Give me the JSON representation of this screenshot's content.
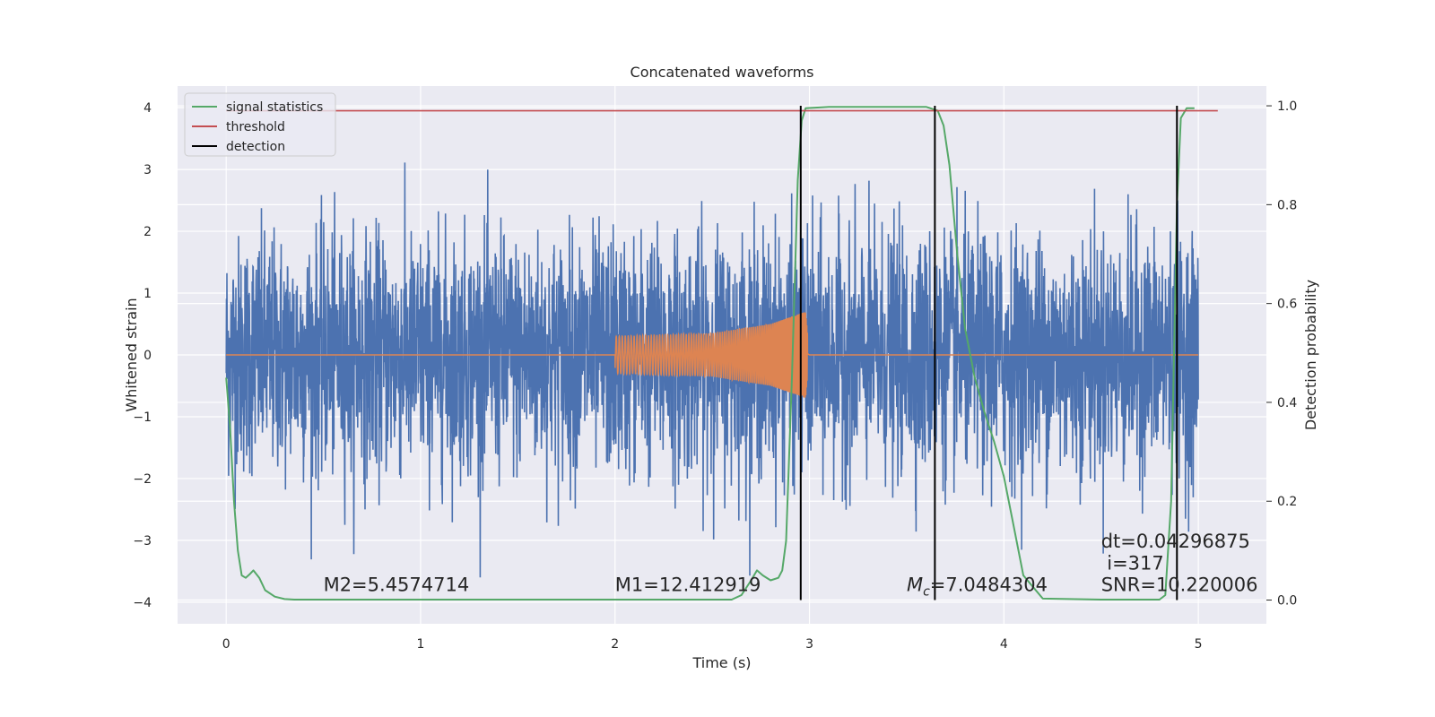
{
  "chart_data": {
    "type": "line",
    "title": "Concatenated waveforms",
    "xlabel": "Time (s)",
    "ylabel": "Whitened strain",
    "ylabel_right": "Detection probability",
    "xlim": [
      -0.25,
      5.35
    ],
    "ylim": [
      -4.35,
      4.35
    ],
    "ylim_right": [
      -0.048,
      1.04
    ],
    "x_ticks": [
      0,
      1,
      2,
      3,
      4,
      5
    ],
    "x_tick_labels": [
      "0",
      "1",
      "2",
      "3",
      "4",
      "5"
    ],
    "y_ticks": [
      -4,
      -3,
      -2,
      -1,
      0,
      1,
      2,
      3,
      4
    ],
    "y_tick_labels": [
      "−4",
      "−3",
      "−2",
      "−1",
      "0",
      "1",
      "2",
      "3",
      "4"
    ],
    "y_ticks_right": [
      0.0,
      0.2,
      0.4,
      0.6,
      0.8,
      1.0
    ],
    "y_tick_labels_right": [
      "0.0",
      "0.2",
      "0.4",
      "0.6",
      "0.8",
      "1.0"
    ],
    "grid": true,
    "legend_position": "top-left",
    "colors": {
      "strain": "#4c72b0",
      "template": "#dd8452",
      "signal_statistics": "#55a868",
      "threshold": "#c44e52",
      "detection": "#000000",
      "plot_bg": "#eaeaf2",
      "grid": "#ffffff"
    },
    "series": [
      {
        "name": "",
        "axis": "left",
        "x_range": [
          0,
          5
        ],
        "envelope_min": -3.6,
        "envelope_max": 3.5
      },
      {
        "name": "",
        "axis": "left",
        "x": [
          0,
          2.0,
          2.0,
          2.5,
          2.8,
          2.98,
          3.0,
          5.0
        ],
        "amplitude": [
          0,
          0,
          0.3,
          0.35,
          0.5,
          0.7,
          0,
          0
        ]
      },
      {
        "name": "signal statistics",
        "axis": "right",
        "x": [
          0.0,
          0.02,
          0.04,
          0.06,
          0.08,
          0.1,
          0.12,
          0.14,
          0.17,
          0.2,
          0.25,
          0.3,
          0.35,
          0.5,
          1.0,
          1.5,
          2.0,
          2.5,
          2.6,
          2.65,
          2.7,
          2.73,
          2.76,
          2.8,
          2.84,
          2.86,
          2.88,
          2.91,
          2.94,
          2.96,
          2.98,
          3.1,
          3.3,
          3.5,
          3.6,
          3.66,
          3.69,
          3.72,
          3.76,
          3.8,
          3.85,
          3.9,
          3.95,
          4.0,
          4.05,
          4.1,
          4.2,
          4.5,
          4.7,
          4.8,
          4.83,
          4.86,
          4.89,
          4.91,
          4.94,
          4.98
        ],
        "values": [
          0.45,
          0.35,
          0.2,
          0.1,
          0.05,
          0.045,
          0.052,
          0.06,
          0.045,
          0.02,
          0.007,
          0.002,
          0.001,
          0.001,
          0.001,
          0.001,
          0.001,
          0.001,
          0.001,
          0.01,
          0.04,
          0.06,
          0.05,
          0.04,
          0.045,
          0.06,
          0.12,
          0.45,
          0.85,
          0.97,
          0.995,
          0.998,
          0.998,
          0.998,
          0.998,
          0.99,
          0.96,
          0.88,
          0.7,
          0.55,
          0.45,
          0.38,
          0.32,
          0.25,
          0.15,
          0.05,
          0.003,
          0.001,
          0.001,
          0.001,
          0.01,
          0.2,
          0.8,
          0.975,
          0.995,
          0.995
        ]
      },
      {
        "name": "threshold",
        "axis": "right",
        "x": [
          0.0,
          5.1
        ],
        "values": [
          0.99,
          0.99
        ]
      },
      {
        "name": "detection",
        "axis": "right",
        "vlines": [
          2.955,
          3.645,
          4.89
        ],
        "vline_range": [
          0.0,
          1.0
        ]
      }
    ],
    "annotations": [
      {
        "text": "M2=5.4574714",
        "x": 0.5,
        "y": -3.82
      },
      {
        "text": "M1=12.412919",
        "x": 2.0,
        "y": -3.82
      },
      {
        "text": "=7.0484304",
        "prefix": "M",
        "subscript": "c",
        "x": 3.5,
        "y": -3.82
      },
      {
        "text": "dt=0.04296875",
        "x": 4.5,
        "y": -3.12
      },
      {
        "text": "i=317",
        "x": 4.53,
        "y": -3.47
      },
      {
        "text": "SNR=10.220006",
        "x": 4.5,
        "y": -3.82
      }
    ]
  }
}
